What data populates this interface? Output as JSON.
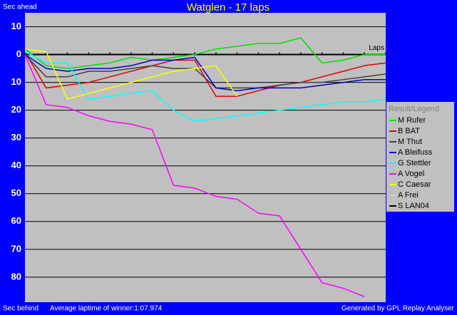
{
  "chart_data": {
    "type": "line",
    "title": "Watglen - 17 laps",
    "y_label_top": "Sec ahead",
    "y_label_bottom": "Sec behind",
    "x_label": "Laps",
    "footer_left": "Average laptime of winner:1:07.974",
    "footer_right": "Generated by GPL Replay Analyser",
    "legend_title": "Result/Legend",
    "legend_position": "right",
    "grid": true,
    "x": [
      0,
      1,
      2,
      3,
      4,
      5,
      6,
      7,
      8,
      9,
      10,
      11,
      12,
      13,
      14,
      15,
      16,
      17
    ],
    "xlim": [
      0,
      17
    ],
    "ylim": [
      -15,
      89
    ],
    "yticks": [
      {
        "value": -10,
        "label": "10"
      },
      0,
      10,
      20,
      30,
      40,
      50,
      60,
      70,
      80
    ],
    "series": [
      {
        "name": "M Rufer",
        "color": "#00e000",
        "values": [
          -2,
          4,
          5,
          4,
          3,
          1,
          2,
          1,
          0,
          -2,
          -3,
          -4,
          -4,
          -6,
          3,
          2,
          0,
          0
        ]
      },
      {
        "name": "B BAT",
        "color": "#e00000",
        "values": [
          -1,
          12,
          11,
          10,
          8,
          6,
          4,
          2,
          2,
          15,
          15,
          13,
          11,
          10,
          8,
          6,
          4,
          3
        ]
      },
      {
        "name": "M Thut",
        "color": "#404040",
        "values": [
          0,
          8,
          8,
          6,
          6,
          5,
          4,
          5,
          5,
          12,
          12,
          12,
          11,
          10,
          10,
          9,
          8,
          7
        ]
      },
      {
        "name": "A Bleifuss",
        "color": "#0000c0",
        "values": [
          0,
          5,
          6,
          5,
          5,
          4,
          2,
          2,
          1,
          12,
          13,
          12,
          12,
          12,
          11,
          10,
          9,
          9
        ]
      },
      {
        "name": "G Stettler",
        "color": "#00ffff",
        "values": [
          -1,
          3,
          3,
          16,
          15,
          14,
          13,
          20,
          24,
          23,
          22,
          21,
          20,
          19,
          18,
          17,
          17,
          16
        ]
      },
      {
        "name": "A Vogel",
        "color": "#ff00ff",
        "values": [
          0,
          18,
          19,
          22,
          24,
          25,
          27,
          47,
          48,
          51,
          52,
          57,
          58,
          70,
          82,
          84,
          87,
          null
        ]
      },
      {
        "name": "C Caesar",
        "color": "#ffff00",
        "values": [
          -2,
          -1,
          16,
          14,
          12,
          10,
          8,
          6,
          5,
          4,
          15,
          null,
          null,
          null,
          null,
          null,
          null,
          null
        ]
      },
      {
        "name": "A Frei",
        "color": "#d0d0d0",
        "values": [
          null,
          null,
          null,
          null,
          null,
          null,
          null,
          null,
          null,
          null,
          null,
          null,
          null,
          null,
          null,
          null,
          null,
          null
        ]
      },
      {
        "name": "S LAN04",
        "color": "#000000",
        "values": [
          null,
          null,
          null,
          null,
          null,
          null,
          null,
          null,
          null,
          null,
          null,
          null,
          null,
          null,
          null,
          null,
          null,
          null
        ]
      }
    ]
  }
}
